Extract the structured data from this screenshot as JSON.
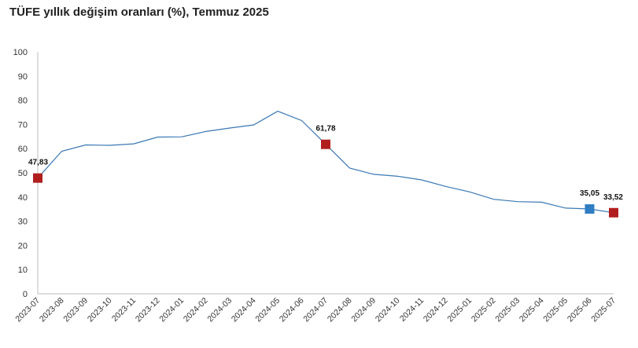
{
  "chart_data": {
    "type": "line",
    "title": "TÜFE yıllık değişim oranları (%), Temmuz 2025",
    "xlabel": "",
    "ylabel": "",
    "ylim": [
      0,
      100
    ],
    "yticks": [
      0,
      10,
      20,
      30,
      40,
      50,
      60,
      70,
      80,
      90,
      100
    ],
    "grid": false,
    "categories": [
      "2023-07",
      "2023-08",
      "2023-09",
      "2023-10",
      "2023-11",
      "2023-12",
      "2024-01",
      "2024-02",
      "2024-03",
      "2024-04",
      "2024-05",
      "2024-06",
      "2024-07",
      "2024-08",
      "2024-09",
      "2024-10",
      "2024-11",
      "2024-12",
      "2025-01",
      "2025-02",
      "2025-03",
      "2025-04",
      "2025-05",
      "2025-06",
      "2025-07"
    ],
    "series": [
      {
        "values": [
          47.83,
          58.94,
          61.53,
          61.36,
          61.98,
          64.77,
          64.86,
          67.07,
          68.5,
          69.8,
          75.45,
          71.6,
          61.78,
          51.97,
          49.38,
          48.58,
          47.09,
          44.38,
          42.12,
          39.05,
          38.1,
          37.86,
          35.41,
          35.05,
          33.52
        ],
        "color": "#3a78b5"
      }
    ],
    "annotations": [
      {
        "index": 0,
        "label": "47,83",
        "color": "#b11e1e"
      },
      {
        "index": 12,
        "label": "61,78",
        "color": "#b11e1e"
      },
      {
        "index": 23,
        "label": "35,05",
        "color": "#2f7dc2"
      },
      {
        "index": 24,
        "label": "33,52",
        "color": "#b11e1e"
      }
    ]
  }
}
